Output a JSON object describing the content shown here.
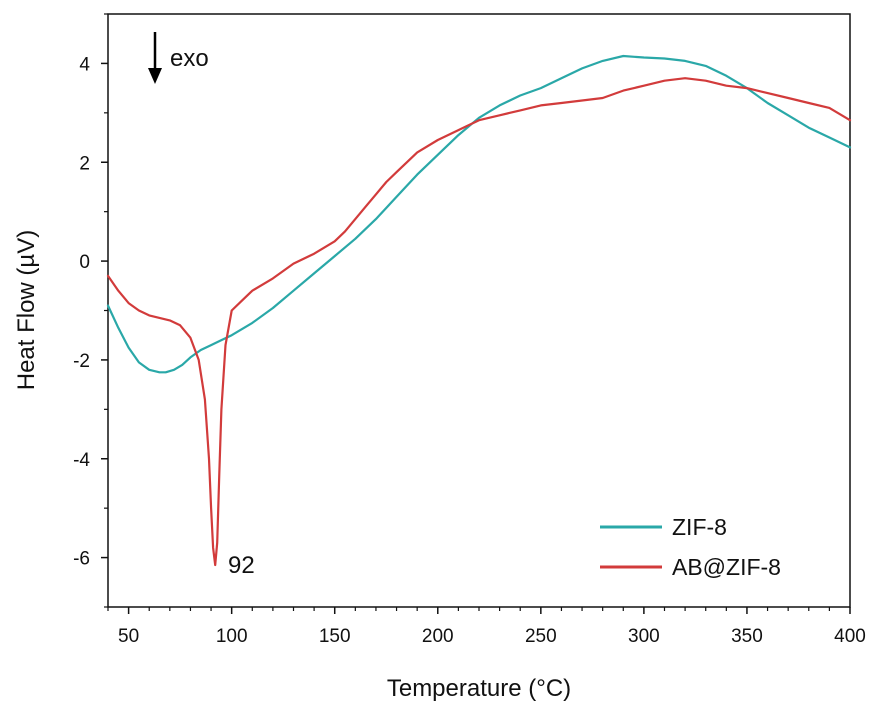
{
  "chart_data": {
    "type": "line",
    "xlabel": "Temperature (°C)",
    "ylabel": "Heat Flow (µV)",
    "xlim": [
      40,
      400
    ],
    "ylim": [
      -7,
      5
    ],
    "xticks": [
      50,
      100,
      150,
      200,
      250,
      300,
      350,
      400
    ],
    "yticks": [
      -6,
      -4,
      -2,
      0,
      2,
      4
    ],
    "grid": false,
    "legend_position": "bottom-right",
    "annotations": [
      {
        "text": "exo",
        "x": 55,
        "y": 4.0,
        "arrow": "down"
      },
      {
        "text": "92",
        "x": 92,
        "y": -6.1
      }
    ],
    "series": [
      {
        "name": "ZIF-8",
        "color": "#2aa8a8",
        "x": [
          40,
          45,
          50,
          55,
          60,
          65,
          68,
          72,
          76,
          80,
          85,
          90,
          95,
          100,
          110,
          120,
          130,
          140,
          150,
          160,
          170,
          180,
          190,
          200,
          210,
          220,
          230,
          240,
          250,
          260,
          270,
          280,
          290,
          300,
          310,
          320,
          330,
          340,
          350,
          360,
          370,
          380,
          390,
          400
        ],
        "y": [
          -0.9,
          -1.35,
          -1.75,
          -2.05,
          -2.2,
          -2.25,
          -2.25,
          -2.2,
          -2.1,
          -1.95,
          -1.8,
          -1.7,
          -1.6,
          -1.5,
          -1.25,
          -0.95,
          -0.6,
          -0.25,
          0.1,
          0.45,
          0.85,
          1.3,
          1.75,
          2.15,
          2.55,
          2.9,
          3.15,
          3.35,
          3.5,
          3.7,
          3.9,
          4.05,
          4.15,
          4.12,
          4.1,
          4.05,
          3.95,
          3.75,
          3.5,
          3.2,
          2.95,
          2.7,
          2.5,
          2.3
        ]
      },
      {
        "name": "AB@ZIF-8",
        "color": "#d23b3b",
        "x": [
          40,
          45,
          50,
          55,
          60,
          65,
          70,
          75,
          80,
          84,
          87,
          89,
          90,
          91,
          92,
          93,
          94,
          95,
          97,
          100,
          105,
          110,
          120,
          130,
          140,
          150,
          155,
          160,
          165,
          170,
          175,
          180,
          190,
          200,
          210,
          220,
          230,
          240,
          250,
          260,
          270,
          280,
          290,
          300,
          310,
          320,
          330,
          340,
          350,
          360,
          370,
          380,
          390,
          400
        ],
        "y": [
          -0.3,
          -0.6,
          -0.85,
          -1.0,
          -1.1,
          -1.15,
          -1.2,
          -1.3,
          -1.55,
          -2.0,
          -2.8,
          -4.0,
          -5.0,
          -5.8,
          -6.15,
          -5.7,
          -4.3,
          -3.0,
          -1.7,
          -1.0,
          -0.8,
          -0.6,
          -0.35,
          -0.05,
          0.15,
          0.4,
          0.6,
          0.85,
          1.1,
          1.35,
          1.6,
          1.8,
          2.2,
          2.45,
          2.65,
          2.85,
          2.95,
          3.05,
          3.15,
          3.2,
          3.25,
          3.3,
          3.45,
          3.55,
          3.65,
          3.7,
          3.65,
          3.55,
          3.5,
          3.4,
          3.3,
          3.2,
          3.1,
          2.85
        ]
      }
    ]
  }
}
